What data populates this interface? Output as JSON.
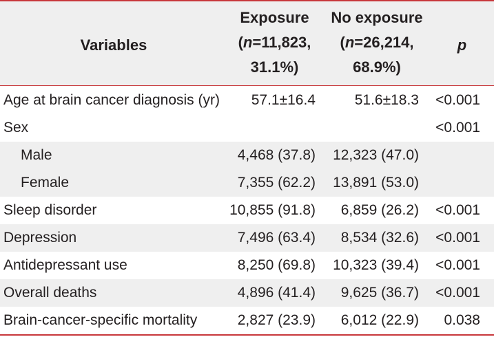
{
  "header": {
    "variables": "Variables",
    "exposure_line1": "Exposure",
    "exposure_line2_n": "n",
    "exposure_line2_rest": "=11,823,",
    "exposure_line3": "31.1%)",
    "no_exposure_line1": "No exposure",
    "no_exposure_line2_n": "n",
    "no_exposure_line2_rest": "=26,214,",
    "no_exposure_line3": "68.9%)",
    "p": "p"
  },
  "rows": [
    {
      "variable": "Age at brain cancer diagnosis (yr)",
      "exposure": "57.1±16.4",
      "no_exposure": "51.6±18.3",
      "p": "<0.001"
    },
    {
      "variable": "Sex",
      "exposure": "",
      "no_exposure": "",
      "p": "<0.001"
    },
    {
      "variable": "Male",
      "exposure": "4,468 (37.8)",
      "no_exposure": "12,323 (47.0)",
      "p": ""
    },
    {
      "variable": "Female",
      "exposure": "7,355 (62.2)",
      "no_exposure": "13,891 (53.0)",
      "p": ""
    },
    {
      "variable": "Sleep disorder",
      "exposure": "10,855 (91.8)",
      "no_exposure": "6,859 (26.2)",
      "p": "<0.001"
    },
    {
      "variable": "Depression",
      "exposure": "7,496 (63.4)",
      "no_exposure": "8,534 (32.6)",
      "p": "<0.001"
    },
    {
      "variable": "Antidepressant use",
      "exposure": "8,250 (69.8)",
      "no_exposure": "10,323 (39.4)",
      "p": "<0.001"
    },
    {
      "variable": "Overall deaths",
      "exposure": "4,896 (41.4)",
      "no_exposure": "9,625 (36.7)",
      "p": "<0.001"
    },
    {
      "variable": "Brain-cancer-specific mortality",
      "exposure": "2,827 (23.9)",
      "no_exposure": "6,012 (22.9)",
      "p": "0.038"
    }
  ]
}
